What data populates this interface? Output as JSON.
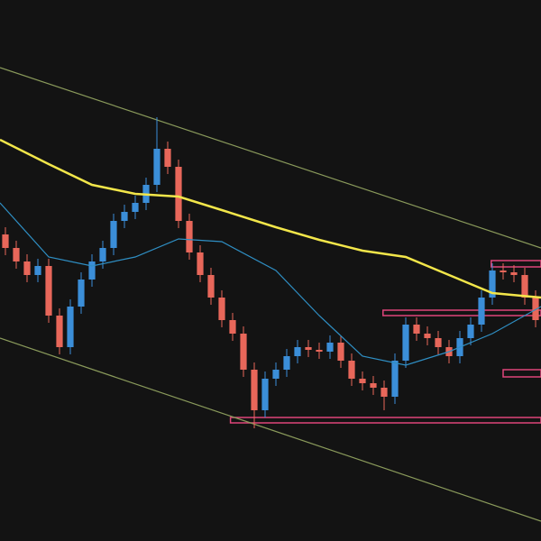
{
  "chart_data": {
    "type": "candlestick",
    "x": [
      0,
      1,
      2,
      3,
      4,
      5,
      6,
      7,
      8,
      9,
      10,
      11,
      12,
      13,
      14,
      15,
      16,
      17,
      18,
      19,
      20,
      21,
      22,
      23,
      24,
      25,
      26,
      27,
      28,
      29,
      30,
      31,
      32,
      33,
      34,
      35,
      36,
      37,
      38,
      39,
      40,
      41,
      42,
      43,
      44,
      45,
      46,
      47,
      48,
      49
    ],
    "open": [
      340,
      325,
      310,
      295,
      305,
      250,
      215,
      260,
      290,
      310,
      325,
      355,
      365,
      375,
      395,
      435,
      415,
      355,
      320,
      295,
      270,
      245,
      230,
      190,
      145,
      180,
      190,
      205,
      215,
      212,
      210,
      220,
      200,
      180,
      175,
      170,
      160,
      200,
      240,
      230,
      225,
      215,
      205,
      225,
      240,
      270,
      300,
      298,
      295,
      270
    ],
    "high": [
      348,
      333,
      318,
      313,
      313,
      258,
      268,
      298,
      318,
      333,
      363,
      373,
      383,
      403,
      470,
      443,
      423,
      363,
      328,
      303,
      278,
      253,
      238,
      198,
      188,
      198,
      213,
      223,
      223,
      220,
      228,
      228,
      208,
      188,
      183,
      178,
      208,
      248,
      248,
      238,
      233,
      223,
      233,
      248,
      278,
      308,
      308,
      306,
      303,
      278
    ],
    "low": [
      317,
      302,
      287,
      287,
      242,
      207,
      207,
      252,
      282,
      302,
      317,
      347,
      357,
      367,
      387,
      407,
      347,
      312,
      287,
      262,
      237,
      222,
      182,
      125,
      137,
      172,
      182,
      197,
      204,
      202,
      202,
      192,
      172,
      167,
      162,
      145,
      152,
      192,
      222,
      217,
      207,
      197,
      197,
      217,
      232,
      262,
      290,
      287,
      262,
      237
    ],
    "close": [
      325,
      310,
      295,
      305,
      250,
      215,
      260,
      290,
      310,
      325,
      355,
      365,
      375,
      395,
      435,
      415,
      355,
      320,
      295,
      270,
      245,
      230,
      190,
      145,
      180,
      190,
      205,
      215,
      212,
      210,
      220,
      200,
      180,
      175,
      170,
      160,
      200,
      240,
      230,
      225,
      215,
      205,
      225,
      240,
      270,
      300,
      298,
      295,
      270,
      245
    ],
    "up_color": "#3b8ed8",
    "down_color": "#e8675a",
    "xlim": [
      -0.5,
      49.5
    ],
    "ylim": [
      0,
      600
    ],
    "lines": [
      {
        "color": "#f2e64a",
        "width": 2.5,
        "x": [
          -0.5,
          4,
          8,
          12,
          16,
          20,
          25,
          29,
          33,
          37,
          41,
          45,
          49.5
        ],
        "values": [
          445,
          418,
          395,
          385,
          382,
          367,
          348,
          334,
          322,
          315,
          295,
          275,
          270
        ]
      },
      {
        "color": "#2f8fc4",
        "width": 1.2,
        "x": [
          -0.5,
          4,
          8,
          12,
          16,
          20,
          25,
          29,
          33,
          37,
          41,
          45,
          49.5
        ],
        "values": [
          375,
          315,
          305,
          315,
          335,
          332,
          300,
          250,
          205,
          195,
          210,
          230,
          260
        ]
      },
      {
        "color": "#8a9a5b",
        "width": 1.2,
        "x": [
          -0.5,
          49.5
        ],
        "values": [
          525,
          325
        ]
      },
      {
        "color": "#8a9a5b",
        "width": 1.2,
        "x": [
          -0.5,
          49.5
        ],
        "values": [
          225,
          22
        ]
      }
    ],
    "zones": [
      {
        "x": [
          44.9,
          49.5
        ],
        "values": [
          311,
          304
        ]
      },
      {
        "x": [
          34.9,
          49.5
        ],
        "values": [
          256,
          250
        ]
      },
      {
        "x": [
          46,
          49.5
        ],
        "values": [
          190,
          182
        ]
      },
      {
        "x": [
          20.8,
          49.5
        ],
        "values": [
          137,
          131
        ]
      }
    ],
    "zone_color": "#e0457b"
  }
}
